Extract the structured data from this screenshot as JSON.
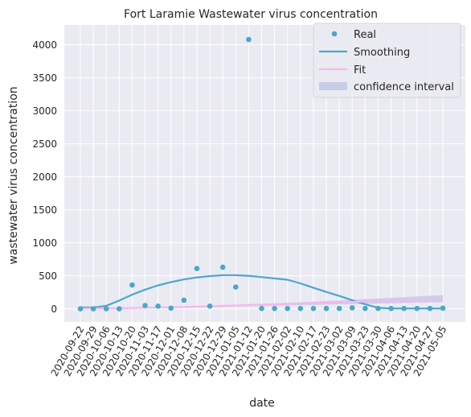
{
  "chart_data": {
    "type": "scatter",
    "title": "Fort Laramie Wastewater virus concentration",
    "xlabel": "date",
    "ylabel": "wastewater virus concentration",
    "x_tick_labels": [
      "2020-09-22",
      "2020-09-29",
      "2020-10-06",
      "2020-10-13",
      "2020-10-20",
      "2020-11-03",
      "2020-11-17",
      "2020-12-01",
      "2020-12-08",
      "2020-12-15",
      "2020-12-22",
      "2020-12-29",
      "2021-01-05",
      "2021-01-12",
      "2021-01-20",
      "2021-01-26",
      "2021-02-02",
      "2021-02-10",
      "2021-02-17",
      "2021-02-23",
      "2021-03-02",
      "2021-03-09",
      "2021-03-23",
      "2021-03-30",
      "2021-04-06",
      "2021-04-13",
      "2021-04-20",
      "2021-04-27",
      "2021-05-05"
    ],
    "y_ticks": [
      0,
      500,
      1000,
      1500,
      2000,
      2500,
      3000,
      3500,
      4000
    ],
    "ylim": [
      -200,
      4300
    ],
    "legend": {
      "position": "top-right",
      "entries": [
        "Real",
        "Smoothing",
        "Fit",
        "confidence interval"
      ]
    },
    "grid": true,
    "colors": {
      "real": "#4aa8c9",
      "smoothing": "#4aa8c9",
      "fit": "#f7b6ee",
      "confidence": "#c7cde6",
      "background": "#eaeaf2",
      "grid": "#ffffff"
    },
    "series": [
      {
        "name": "Real",
        "kind": "scatter",
        "values": [
          0,
          0,
          0,
          0,
          360,
          50,
          40,
          10,
          130,
          610,
          40,
          630,
          330,
          4080,
          5,
          5,
          5,
          5,
          5,
          5,
          5,
          15,
          5,
          5,
          5,
          5,
          5,
          5,
          10
        ]
      },
      {
        "name": "Smoothing",
        "kind": "line",
        "values": [
          20,
          20,
          45,
          125,
          215,
          290,
          355,
          405,
          445,
          475,
          495,
          510,
          510,
          500,
          480,
          460,
          440,
          385,
          320,
          255,
          195,
          130,
          70,
          15,
          5,
          5,
          5,
          5,
          5
        ]
      },
      {
        "name": "Fit",
        "kind": "line",
        "values": [
          5,
          6,
          8,
          10,
          12,
          16,
          20,
          24,
          28,
          33,
          38,
          44,
          50,
          56,
          62,
          68,
          74,
          80,
          86,
          92,
          98,
          105,
          112,
          118,
          124,
          130,
          136,
          142,
          148
        ]
      },
      {
        "name": "confidence interval",
        "kind": "band",
        "lower": [
          0,
          1,
          3,
          5,
          7,
          10,
          13,
          17,
          20,
          24,
          28,
          32,
          36,
          40,
          44,
          48,
          52,
          56,
          60,
          64,
          68,
          72,
          76,
          80,
          84,
          88,
          92,
          96,
          100
        ],
        "upper": [
          10,
          12,
          14,
          16,
          18,
          22,
          27,
          32,
          37,
          43,
          49,
          55,
          62,
          69,
          76,
          84,
          92,
          100,
          109,
          118,
          127,
          137,
          147,
          157,
          167,
          177,
          187,
          197,
          207
        ]
      }
    ]
  }
}
